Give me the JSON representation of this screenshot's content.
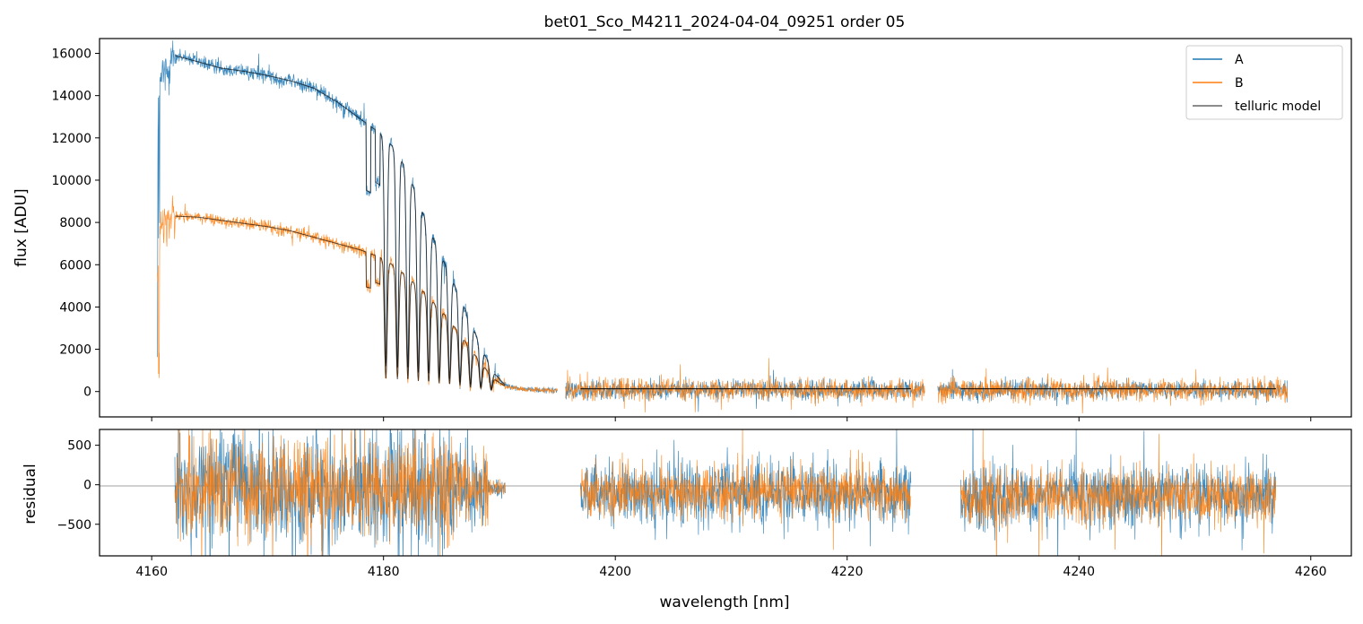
{
  "chart_data": {
    "type": "line",
    "title": "bet01_Sco_M4211_2024-04-04_09251  order 05",
    "colors": {
      "A": "#1f77b4",
      "B": "#ff7f0e",
      "model": "#000000",
      "zero_line": "#808080"
    },
    "top_panel": {
      "ylabel": "flux [ADU]",
      "xlim": [
        4155.5,
        4263.5
      ],
      "ylim": [
        -1200,
        16700
      ],
      "yticks": [
        0,
        2000,
        4000,
        6000,
        8000,
        10000,
        12000,
        14000,
        16000
      ],
      "legend": {
        "position": "top-right",
        "entries": [
          "A",
          "B",
          "telluric model"
        ]
      },
      "segments": [
        {
          "x_range": [
            4160.5,
            4195.0
          ]
        },
        {
          "x_range": [
            4195.7,
            4226.7
          ]
        },
        {
          "x_range": [
            4227.8,
            4258.0
          ]
        }
      ],
      "series": [
        {
          "name": "A",
          "envelope": [
            [
              4160.6,
              14500
            ],
            [
              4162,
              15900
            ],
            [
              4164,
              15600
            ],
            [
              4166,
              15300
            ],
            [
              4168,
              15150
            ],
            [
              4170,
              14950
            ],
            [
              4172,
              14700
            ],
            [
              4174,
              14350
            ],
            [
              4176,
              13700
            ],
            [
              4178,
              12900
            ],
            [
              4179.5,
              12300
            ],
            [
              4180.5,
              11800
            ],
            [
              4181.5,
              11000
            ],
            [
              4182.5,
              9800
            ],
            [
              4183.5,
              8300
            ],
            [
              4184.5,
              7000
            ],
            [
              4185.5,
              5800
            ],
            [
              4186.5,
              4600
            ],
            [
              4187.5,
              3300
            ],
            [
              4188.5,
              2000
            ],
            [
              4189.5,
              900
            ],
            [
              4190.5,
              300
            ],
            [
              4192,
              100
            ],
            [
              4195,
              50
            ]
          ]
        },
        {
          "name": "B",
          "envelope": [
            [
              4160.6,
              7800
            ],
            [
              4162,
              8300
            ],
            [
              4164,
              8250
            ],
            [
              4166,
              8100
            ],
            [
              4168,
              7950
            ],
            [
              4170,
              7800
            ],
            [
              4172,
              7600
            ],
            [
              4174,
              7300
            ],
            [
              4176,
              7000
            ],
            [
              4178,
              6700
            ],
            [
              4179.5,
              6400
            ],
            [
              4180.5,
              6100
            ],
            [
              4181.5,
              5700
            ],
            [
              4182.5,
              5200
            ],
            [
              4183.5,
              4700
            ],
            [
              4184.5,
              4100
            ],
            [
              4185.5,
              3500
            ],
            [
              4186.5,
              2800
            ],
            [
              4187.5,
              2000
            ],
            [
              4188.5,
              1300
            ],
            [
              4189.5,
              600
            ],
            [
              4190.5,
              250
            ],
            [
              4192,
              100
            ],
            [
              4195,
              50
            ]
          ]
        },
        {
          "name": "telluric model"
        }
      ],
      "absorption_lines_nm": [
        4180.2,
        4181.2,
        4182.1,
        4183.0,
        4183.9,
        4184.8,
        4185.7,
        4186.6,
        4187.5,
        4188.4,
        4189.3
      ],
      "noise_level_ADU": {
        "A": 220,
        "B": 260
      }
    },
    "bottom_panel": {
      "ylabel": "residual",
      "xlabel": "wavelength [nm]",
      "xlim": [
        4155.5,
        4263.5
      ],
      "ylim": [
        -900,
        700
      ],
      "yticks": [
        -500,
        0,
        500
      ],
      "xticks": [
        4160,
        4180,
        4200,
        4220,
        4240,
        4260
      ],
      "segments": [
        {
          "x_range": [
            4162.0,
            4190.5
          ]
        },
        {
          "x_range": [
            4197.0,
            4225.5
          ]
        },
        {
          "x_range": [
            4229.8,
            4257.0
          ]
        }
      ],
      "offset": [
        -50,
        -100,
        -150
      ]
    }
  }
}
